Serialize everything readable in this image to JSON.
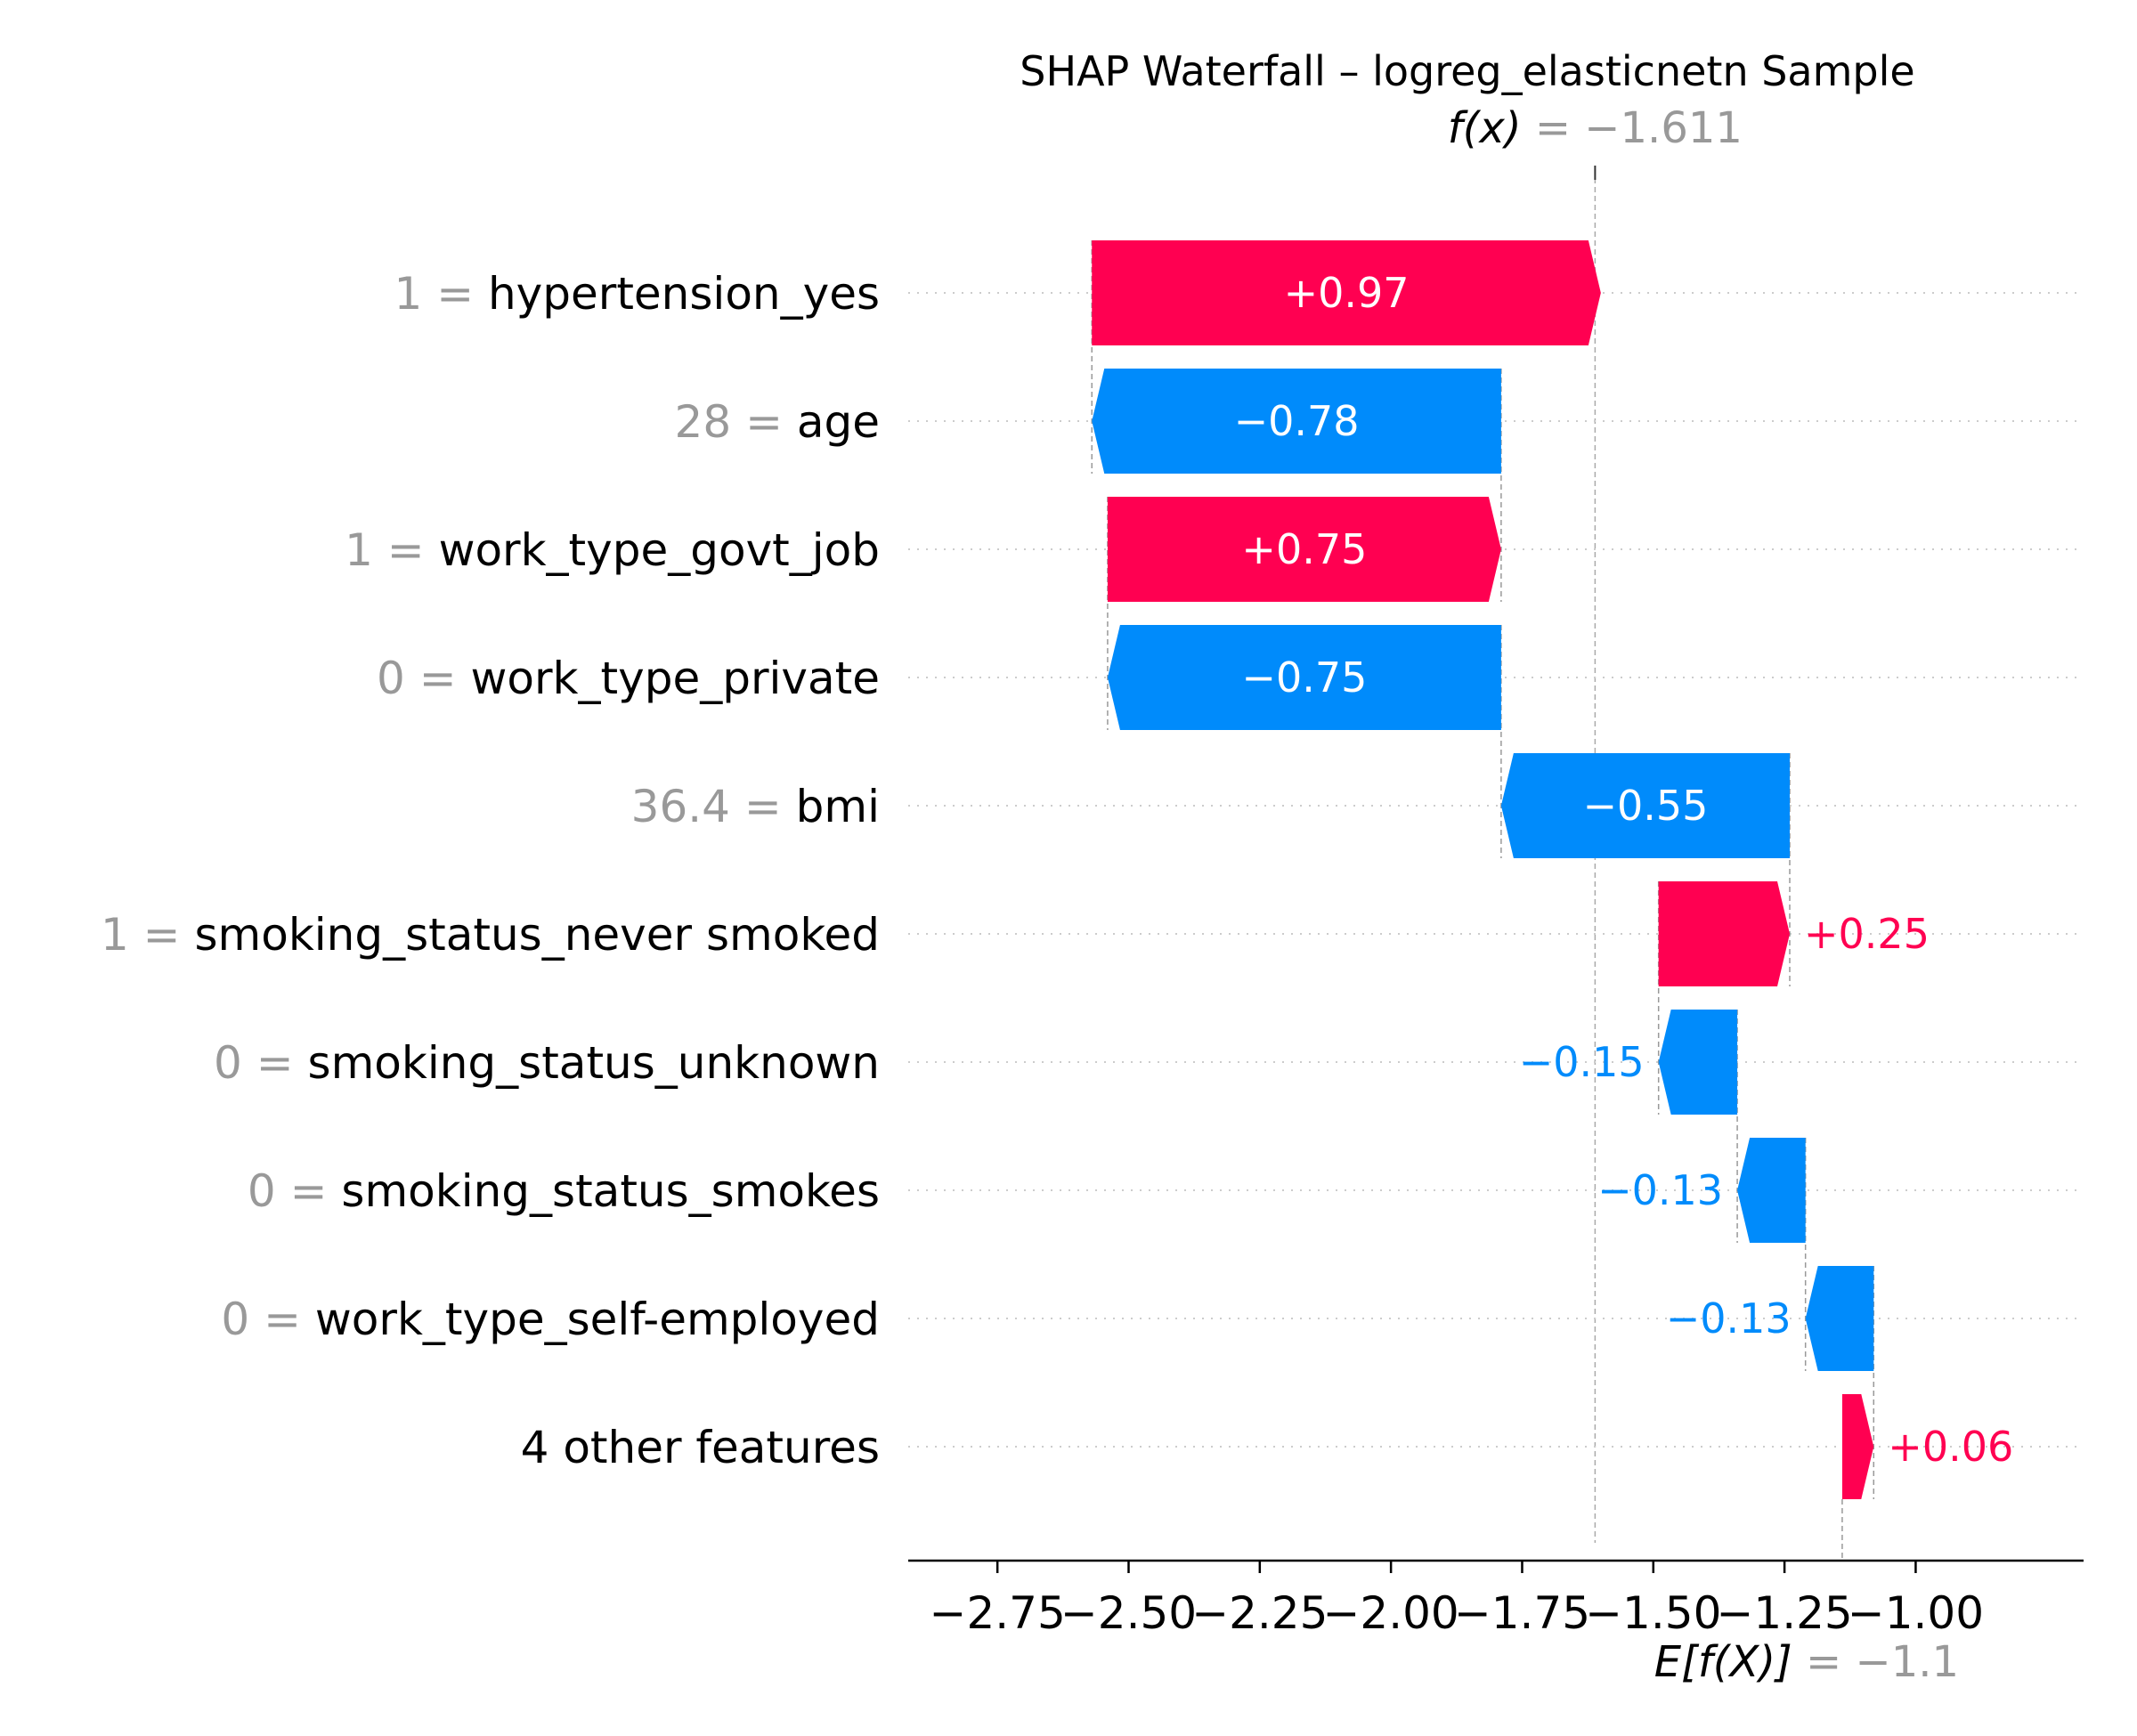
{
  "chart_data": {
    "type": "waterfall",
    "title": "SHAP Waterfall – logreg_elasticnetn Sample",
    "fx_label": "f(x)",
    "fx_value": -1.611,
    "fx_text": "−1.611",
    "ex_label": "E[f(X)]",
    "ex_value": -1.14,
    "ex_text": "−1.1",
    "xlim": [
      -2.92,
      -0.68
    ],
    "xticks": [
      -2.75,
      -2.5,
      -2.25,
      -2.0,
      -1.75,
      -1.5,
      -1.25,
      -1.0
    ],
    "tick_labels": [
      "−2.75",
      "−2.50",
      "−2.25",
      "−2.00",
      "−1.75",
      "−1.50",
      "−1.25",
      "−1.00"
    ],
    "features": [
      {
        "name": "hypertension_yes",
        "value": "1",
        "shap": 0.97,
        "label": "+0.97"
      },
      {
        "name": "age",
        "value": "28",
        "shap": -0.78,
        "label": "−0.78"
      },
      {
        "name": "work_type_govt_job",
        "value": "1",
        "shap": 0.75,
        "label": "+0.75"
      },
      {
        "name": "work_type_private",
        "value": "0",
        "shap": -0.75,
        "label": "−0.75"
      },
      {
        "name": "bmi",
        "value": "36.4",
        "shap": -0.55,
        "label": "−0.55"
      },
      {
        "name": "smoking_status_never smoked",
        "value": "1",
        "shap": 0.25,
        "label": "+0.25"
      },
      {
        "name": "smoking_status_unknown",
        "value": "0",
        "shap": -0.15,
        "label": "−0.15"
      },
      {
        "name": "smoking_status_smokes",
        "value": "0",
        "shap": -0.13,
        "label": "−0.13"
      },
      {
        "name": "work_type_self-employed",
        "value": "0",
        "shap": -0.13,
        "label": "−0.13"
      },
      {
        "name": "4 other features",
        "value": "",
        "shap": 0.06,
        "label": "+0.06"
      }
    ],
    "colors": {
      "positive": "#ff0051",
      "negative": "#008bfb",
      "value_text": "#999999",
      "grid": "#cccccc"
    },
    "grid": true
  }
}
